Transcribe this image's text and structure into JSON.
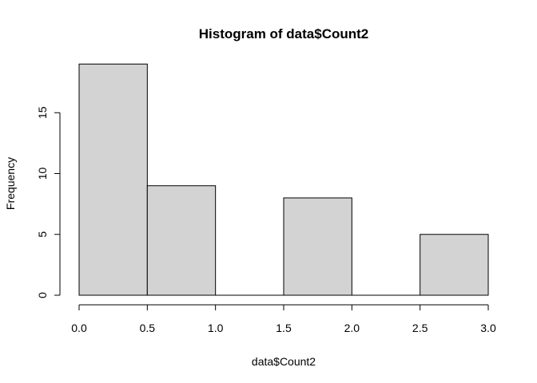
{
  "chart_data": {
    "type": "bar",
    "title": "Histogram of data$Count2",
    "xlabel": "data$Count2",
    "ylabel": "Frequency",
    "bins": [
      {
        "start": 0.0,
        "end": 0.5,
        "value": 19
      },
      {
        "start": 0.5,
        "end": 1.0,
        "value": 9
      },
      {
        "start": 1.0,
        "end": 1.5,
        "value": 0
      },
      {
        "start": 1.5,
        "end": 2.0,
        "value": 8
      },
      {
        "start": 2.0,
        "end": 2.5,
        "value": 0
      },
      {
        "start": 2.5,
        "end": 3.0,
        "value": 5
      }
    ],
    "xlim": [
      0.0,
      3.0
    ],
    "ylim": [
      0,
      20
    ],
    "xticks": [
      "0.0",
      "0.5",
      "1.0",
      "1.5",
      "2.0",
      "2.5",
      "3.0"
    ],
    "yticks": [
      "0",
      "5",
      "10",
      "15"
    ],
    "bar_fill": "#d3d3d3",
    "bar_stroke": "#000000",
    "grid": false,
    "legend": "none"
  }
}
